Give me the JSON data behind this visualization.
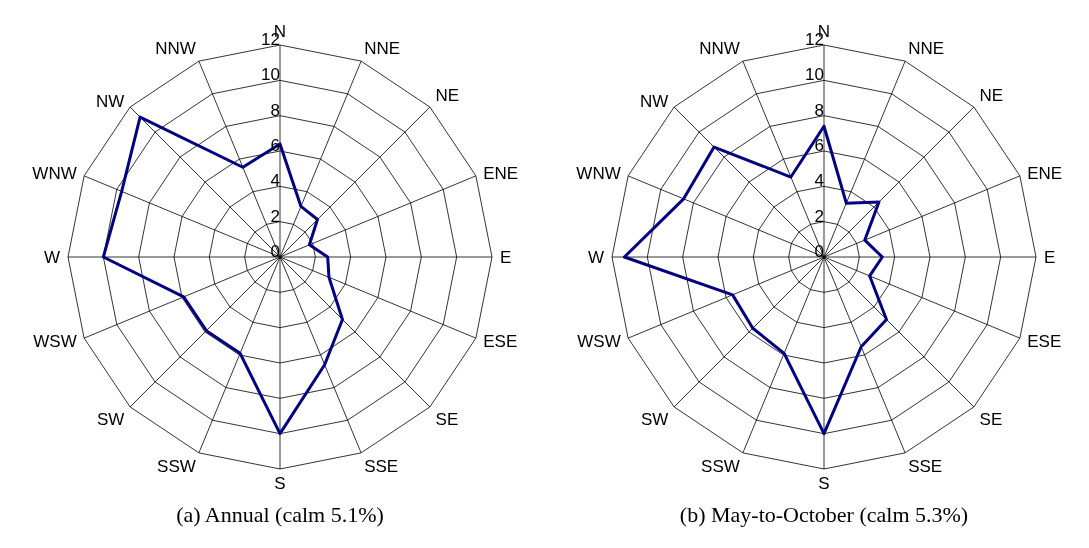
{
  "chart_data": [
    {
      "type": "radar",
      "title": "(a) Annual (calm 5.1%)",
      "categories": [
        "N",
        "NNE",
        "NE",
        "ENE",
        "E",
        "ESE",
        "SE",
        "SSE",
        "S",
        "SSW",
        "SW",
        "WSW",
        "W",
        "WNW",
        "NW",
        "NNW"
      ],
      "ylim": [
        0,
        12
      ],
      "yticks": [
        0,
        2,
        4,
        6,
        8,
        10,
        12
      ],
      "grid": true,
      "marker": "none",
      "legend": false,
      "series": [
        {
          "color": "#000080",
          "values": [
            6.4,
            3.1,
            3.0,
            1.8,
            2.7,
            3.0,
            5.0,
            6.6,
            10,
            5.9,
            5.9,
            5.9,
            10,
            9.7,
            11.2,
            5.5
          ]
        }
      ]
    },
    {
      "type": "radar",
      "title": "(b) May-to-October (calm 5.3%)",
      "categories": [
        "N",
        "NNE",
        "NE",
        "ENE",
        "E",
        "ESE",
        "SE",
        "SSE",
        "S",
        "SSW",
        "SW",
        "WSW",
        "W",
        "WNW",
        "NW",
        "NNW"
      ],
      "ylim": [
        0,
        12
      ],
      "yticks": [
        0,
        2,
        4,
        6,
        8,
        10,
        12
      ],
      "grid": true,
      "marker": "none",
      "legend": false,
      "series": [
        {
          "color": "#000080",
          "values": [
            7.4,
            3.3,
            4.4,
            2.5,
            3.3,
            2.8,
            5.0,
            5.5,
            10,
            5.9,
            5.7,
            5.6,
            11.3,
            8.6,
            8.8,
            4.9
          ]
        }
      ]
    }
  ]
}
